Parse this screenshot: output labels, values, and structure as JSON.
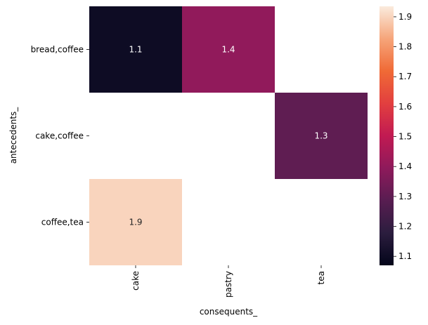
{
  "chart_data": {
    "type": "heatmap",
    "xlabel": "consequents_",
    "ylabel": "antecedents_",
    "x_categories": [
      "cake",
      "pastry",
      "tea"
    ],
    "y_categories": [
      "bread,coffee",
      "cake,coffee",
      "coffee,tea"
    ],
    "values": [
      [
        1.1,
        1.4,
        null
      ],
      [
        null,
        null,
        1.3
      ],
      [
        1.9,
        null,
        null
      ]
    ],
    "annotations": [
      [
        "1.1",
        "1.4",
        ""
      ],
      [
        "",
        "",
        "1.3"
      ],
      [
        "1.9",
        "",
        ""
      ]
    ],
    "colorbar": {
      "colormap": "rocket",
      "range": [
        1.07,
        1.935
      ],
      "ticks": [
        1.1,
        1.2,
        1.3,
        1.4,
        1.5,
        1.6,
        1.7,
        1.8,
        1.9
      ],
      "tick_labels": [
        "1.1",
        "1.2",
        "1.3",
        "1.4",
        "1.5",
        "1.6",
        "1.7",
        "1.8",
        "1.9"
      ]
    },
    "colors": {
      "rocket_stops": [
        "#03051a",
        "#2b1d3e",
        "#581d51",
        "#8e1a5b",
        "#c11a52",
        "#e23f3f",
        "#f06a36",
        "#f6a57a",
        "#faebdd"
      ],
      "annotation_light": "#ffffff",
      "annotation_dark": "#262626"
    }
  }
}
